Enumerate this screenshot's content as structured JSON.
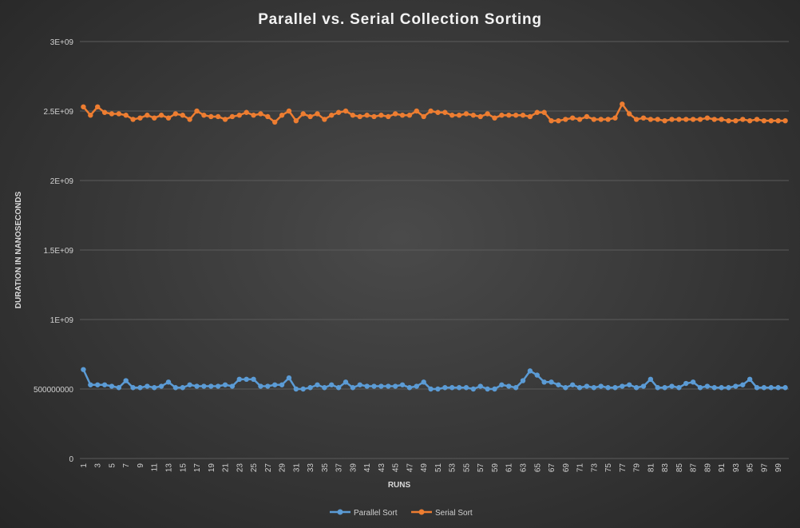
{
  "chart_data": {
    "type": "line",
    "title": "Parallel vs. Serial Collection Sorting",
    "xlabel": "RUNS",
    "ylabel": "DURATION IN NANOSECONDS",
    "ylim": [
      0,
      3000000000
    ],
    "yticks": [
      {
        "value": 0,
        "label": "0"
      },
      {
        "value": 500000000,
        "label": "500000000"
      },
      {
        "value": 1000000000,
        "label": "1E+09"
      },
      {
        "value": 1500000000,
        "label": "1.5E+09"
      },
      {
        "value": 2000000000,
        "label": "2E+09"
      },
      {
        "value": 2500000000,
        "label": "2.5E+09"
      },
      {
        "value": 3000000000,
        "label": "3E+09"
      }
    ],
    "x_tick_labels": [
      "1",
      "3",
      "5",
      "7",
      "9",
      "11",
      "13",
      "15",
      "17",
      "19",
      "21",
      "23",
      "25",
      "27",
      "29",
      "31",
      "33",
      "35",
      "37",
      "39",
      "41",
      "43",
      "45",
      "47",
      "49",
      "51",
      "53",
      "55",
      "57",
      "59",
      "61",
      "63",
      "65",
      "67",
      "69",
      "71",
      "73",
      "75",
      "77",
      "79",
      "81",
      "83",
      "85",
      "87",
      "89",
      "91",
      "93",
      "95",
      "97",
      "99"
    ],
    "grid": true,
    "legend_position": "bottom",
    "series": [
      {
        "name": "Parallel Sort",
        "color": "#5b9bd5",
        "values": [
          640000000,
          530000000,
          530000000,
          530000000,
          520000000,
          510000000,
          560000000,
          510000000,
          510000000,
          520000000,
          510000000,
          520000000,
          550000000,
          510000000,
          510000000,
          530000000,
          520000000,
          520000000,
          520000000,
          520000000,
          530000000,
          520000000,
          570000000,
          570000000,
          570000000,
          520000000,
          520000000,
          530000000,
          530000000,
          580000000,
          500000000,
          500000000,
          510000000,
          530000000,
          510000000,
          530000000,
          510000000,
          550000000,
          510000000,
          530000000,
          520000000,
          520000000,
          520000000,
          520000000,
          520000000,
          530000000,
          510000000,
          520000000,
          550000000,
          500000000,
          500000000,
          510000000,
          510000000,
          510000000,
          510000000,
          500000000,
          520000000,
          500000000,
          500000000,
          530000000,
          520000000,
          510000000,
          560000000,
          630000000,
          600000000,
          550000000,
          550000000,
          530000000,
          510000000,
          530000000,
          510000000,
          520000000,
          510000000,
          520000000,
          510000000,
          510000000,
          520000000,
          530000000,
          510000000,
          520000000,
          570000000,
          510000000,
          510000000,
          520000000,
          510000000,
          540000000,
          550000000,
          510000000,
          520000000,
          510000000,
          510000000,
          510000000,
          520000000,
          530000000,
          570000000,
          510000000,
          510000000,
          510000000,
          510000000,
          510000000
        ]
      },
      {
        "name": "Serial Sort",
        "color": "#ed7d31",
        "values": [
          2530000000,
          2470000000,
          2530000000,
          2490000000,
          2480000000,
          2480000000,
          2470000000,
          2440000000,
          2450000000,
          2470000000,
          2450000000,
          2470000000,
          2450000000,
          2480000000,
          2470000000,
          2440000000,
          2500000000,
          2470000000,
          2460000000,
          2460000000,
          2440000000,
          2460000000,
          2470000000,
          2490000000,
          2470000000,
          2480000000,
          2460000000,
          2420000000,
          2470000000,
          2500000000,
          2430000000,
          2480000000,
          2460000000,
          2480000000,
          2440000000,
          2470000000,
          2490000000,
          2500000000,
          2470000000,
          2460000000,
          2470000000,
          2460000000,
          2470000000,
          2460000000,
          2480000000,
          2470000000,
          2470000000,
          2500000000,
          2460000000,
          2500000000,
          2490000000,
          2490000000,
          2470000000,
          2470000000,
          2480000000,
          2470000000,
          2460000000,
          2480000000,
          2450000000,
          2470000000,
          2470000000,
          2470000000,
          2470000000,
          2460000000,
          2490000000,
          2490000000,
          2430000000,
          2430000000,
          2440000000,
          2450000000,
          2440000000,
          2460000000,
          2440000000,
          2440000000,
          2440000000,
          2450000000,
          2550000000,
          2480000000,
          2440000000,
          2450000000,
          2440000000,
          2440000000,
          2430000000,
          2440000000,
          2440000000,
          2440000000,
          2440000000,
          2440000000,
          2450000000,
          2440000000,
          2440000000,
          2430000000,
          2430000000,
          2440000000,
          2430000000,
          2440000000,
          2430000000,
          2430000000,
          2430000000,
          2430000000
        ]
      }
    ]
  }
}
